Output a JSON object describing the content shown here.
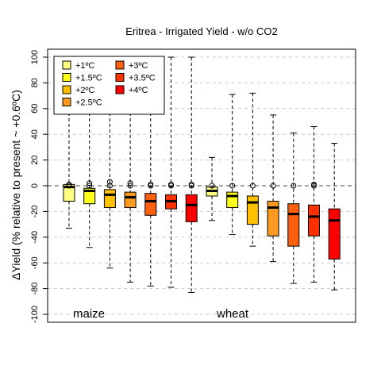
{
  "chart_data": {
    "type": "boxplot",
    "title": "Eritrea - Irrigated Yield - w/o CO2",
    "ylabel": "ΔYield (% relative to present ~ +0.6ºC)",
    "xlabel": "",
    "ylim": [
      -100,
      100
    ],
    "yticks": [
      -100,
      -80,
      -60,
      -40,
      -20,
      0,
      20,
      40,
      60,
      80,
      100
    ],
    "grid": true,
    "reference_line": 0,
    "groups": [
      "maize",
      "wheat"
    ],
    "legend": {
      "position": "top-left",
      "entries": [
        {
          "label": "+1ºC",
          "color": "#ffff80"
        },
        {
          "label": "+1.5ºC",
          "color": "#ffff1a"
        },
        {
          "label": "+2ºC",
          "color": "#ffc000"
        },
        {
          "label": "+2.5ºC",
          "color": "#ff9a20"
        },
        {
          "label": "+3ºC",
          "color": "#ff6010"
        },
        {
          "label": "+3.5ºC",
          "color": "#ff3000"
        },
        {
          "label": "+4ºC",
          "color": "#ff0000"
        }
      ]
    },
    "series": [
      {
        "group": "maize",
        "scenario": "+1ºC",
        "color": "#ffff80",
        "whisker_low": -33,
        "q1": -12,
        "median": -1,
        "q3": 1,
        "whisker_high": 100,
        "outliers": [
          1,
          0
        ]
      },
      {
        "group": "maize",
        "scenario": "+1.5ºC",
        "color": "#ffff1a",
        "whisker_low": -48,
        "q1": -14,
        "median": -4,
        "q3": -2,
        "whisker_high": 100,
        "outliers": [
          2,
          0
        ]
      },
      {
        "group": "maize",
        "scenario": "+2ºC",
        "color": "#ffc000",
        "whisker_low": -64,
        "q1": -17,
        "median": -7,
        "q3": -3,
        "whisker_high": 100,
        "outliers": [
          3,
          0
        ]
      },
      {
        "group": "maize",
        "scenario": "+2.5ºC",
        "color": "#ff9a20",
        "whisker_low": -75,
        "q1": -17,
        "median": -9,
        "q3": -5,
        "whisker_high": 100,
        "outliers": [
          2,
          0
        ]
      },
      {
        "group": "maize",
        "scenario": "+3ºC",
        "color": "#ff6010",
        "whisker_low": -78,
        "q1": -23,
        "median": -12,
        "q3": -6,
        "whisker_high": 100,
        "outliers": [
          1,
          0
        ]
      },
      {
        "group": "maize",
        "scenario": "+3.5ºC",
        "color": "#ff3000",
        "whisker_low": -79,
        "q1": -18,
        "median": -12,
        "q3": -7,
        "whisker_high": 100,
        "outliers": [
          1,
          0
        ]
      },
      {
        "group": "maize",
        "scenario": "+4ºC",
        "color": "#ff0000",
        "whisker_low": -83,
        "q1": -28,
        "median": -15,
        "q3": -7,
        "whisker_high": 100,
        "outliers": [
          1,
          0
        ]
      },
      {
        "group": "wheat",
        "scenario": "+1ºC",
        "color": "#ffff80",
        "whisker_low": -27,
        "q1": -8,
        "median": -4,
        "q3": -1,
        "whisker_high": 22,
        "outliers": [
          0
        ]
      },
      {
        "group": "wheat",
        "scenario": "+1.5ºC",
        "color": "#ffff1a",
        "whisker_low": -38,
        "q1": -17,
        "median": -8,
        "q3": -5,
        "whisker_high": 71,
        "outliers": [
          0
        ]
      },
      {
        "group": "wheat",
        "scenario": "+2ºC",
        "color": "#ffc000",
        "whisker_low": -47,
        "q1": -30,
        "median": -13,
        "q3": -8,
        "whisker_high": 72,
        "outliers": [
          0
        ]
      },
      {
        "group": "wheat",
        "scenario": "+2.5ºC",
        "color": "#ff9a20",
        "whisker_low": -59,
        "q1": -39,
        "median": -17,
        "q3": -12,
        "whisker_high": 55,
        "outliers": [
          0
        ]
      },
      {
        "group": "wheat",
        "scenario": "+3ºC",
        "color": "#ff6010",
        "whisker_low": -76,
        "q1": -47,
        "median": -22,
        "q3": -14,
        "whisker_high": 41,
        "outliers": [
          0
        ]
      },
      {
        "group": "wheat",
        "scenario": "+3.5ºC",
        "color": "#ff3000",
        "whisker_low": -75,
        "q1": -39,
        "median": -24,
        "q3": -15,
        "whisker_high": 46,
        "outliers": [
          0,
          1
        ]
      },
      {
        "group": "wheat",
        "scenario": "+4ºC",
        "color": "#ff0000",
        "whisker_low": -81,
        "q1": -57,
        "median": -27,
        "q3": -18,
        "whisker_high": 33,
        "outliers": []
      }
    ]
  }
}
